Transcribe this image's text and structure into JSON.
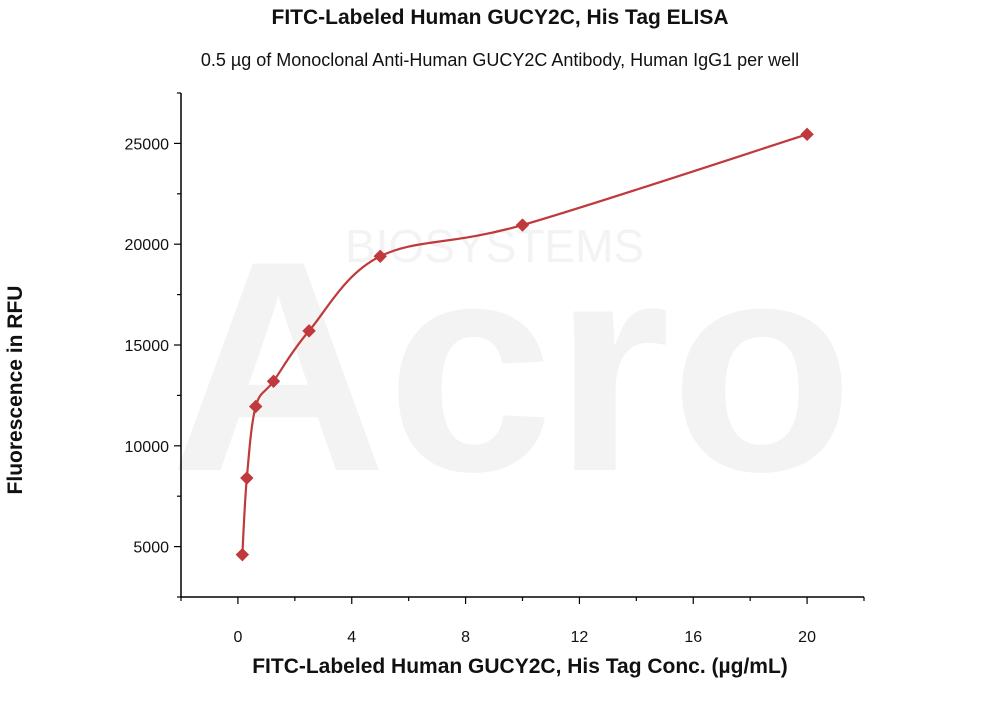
{
  "chart_data": {
    "type": "scatter",
    "title": "FITC-Labeled Human GUCY2C, His Tag ELISA",
    "subtitle": "0.5 µg of Monoclonal Anti-Human GUCY2C Antibody, Human IgG1 per well",
    "xlabel": "FITC-Labeled Human GUCY2C, His Tag Conc. (µg/mL)",
    "ylabel": "Fluorescence in RFU",
    "xlim": [
      -2,
      22
    ],
    "ylim": [
      2500,
      27500
    ],
    "xticks": [
      0,
      4,
      8,
      12,
      16,
      20
    ],
    "yticks": [
      5000,
      10000,
      15000,
      20000,
      25000
    ],
    "series": [
      {
        "color": "#c0393b",
        "marker": "diamond",
        "fit_curve": true,
        "x": [
          0.156,
          0.313,
          0.625,
          1.25,
          2.5,
          5,
          10,
          20
        ],
        "y": [
          4600,
          8400,
          11950,
          13200,
          15700,
          19400,
          20950,
          25450
        ]
      }
    ],
    "grid": false,
    "legend": "none",
    "watermark": "Acro BIOSYSTEMS"
  }
}
